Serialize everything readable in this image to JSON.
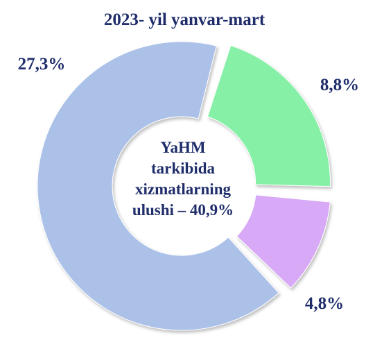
{
  "chart_data": {
    "type": "donut",
    "title": "2023- yil yanvar-mart",
    "categories": [
      null,
      null,
      null
    ],
    "values": [
      8.8,
      4.8,
      27.3
    ],
    "value_labels": [
      "8,8%",
      "4,8%",
      "27,3%"
    ],
    "colors": [
      "#86f0a6",
      "#d8a9f6",
      "#abc1e8"
    ],
    "center_text": [
      "YaHM",
      "tarkibida",
      "xizmatlarning",
      "ulushi – 40,9%"
    ]
  }
}
